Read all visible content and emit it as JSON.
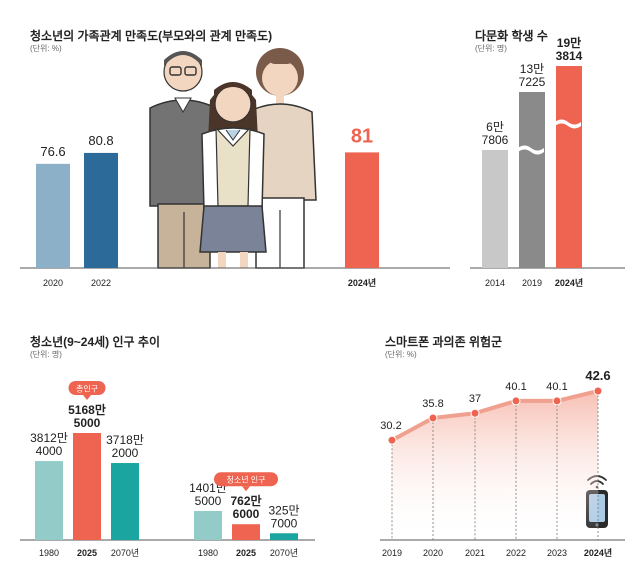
{
  "chart_data": [
    {
      "type": "bar",
      "title": "청소년의 가족관계 만족도(부모와의 관계 만족도)",
      "unit": "(단위: %)",
      "categories": [
        "2020",
        "2022",
        "2024년"
      ],
      "values": [
        76.6,
        80.8,
        81
      ],
      "value_labels": [
        "76.6",
        "80.8",
        "81"
      ],
      "colors": [
        "#8db0c9",
        "#2c6a99",
        "#ee6450"
      ],
      "ylim": [
        0,
        100
      ]
    },
    {
      "type": "bar",
      "title": "다문화 학생 수",
      "unit": "(단위: 명)",
      "categories": [
        "2014",
        "2019",
        "2024년"
      ],
      "values": [
        67806,
        137225,
        193814
      ],
      "value_labels": [
        [
          "6만",
          "7806"
        ],
        [
          "13만",
          "7225"
        ],
        [
          "19만",
          "3814"
        ]
      ],
      "colors": [
        "#c8c8c8",
        "#8a8a8a",
        "#ee6450"
      ],
      "axis_break": true
    },
    {
      "type": "bar",
      "title": "청소년(9~24세) 인구 추이",
      "unit": "(단위: 명)",
      "groups": [
        {
          "name": "총인구",
          "categories": [
            "1980",
            "2025",
            "2070년"
          ],
          "values": [
            38124000,
            51685000,
            37182000
          ],
          "value_labels": [
            [
              "3812만",
              "4000"
            ],
            [
              "5168만",
              "5000"
            ],
            [
              "3718만",
              "2000"
            ]
          ]
        },
        {
          "name": "청소년 인구",
          "categories": [
            "1980",
            "2025",
            "2070년"
          ],
          "values": [
            14015000,
            7626000,
            3257000
          ],
          "value_labels": [
            [
              "1401만",
              "5000"
            ],
            [
              "762만",
              "6000"
            ],
            [
              "325만",
              "7000"
            ]
          ]
        }
      ],
      "colors": [
        "#93cbc8",
        "#ee6450",
        "#1aa5a0"
      ]
    },
    {
      "type": "area",
      "title": "스마트폰 과의존 위험군",
      "unit": "(단위: %)",
      "x": [
        "2019",
        "2020",
        "2021",
        "2022",
        "2023",
        "2024년"
      ],
      "values": [
        30.2,
        35.8,
        37,
        40.1,
        40.1,
        42.6
      ],
      "value_labels": [
        "30.2",
        "35.8",
        "37",
        "40.1",
        "40.1",
        "42.6"
      ],
      "colors": [
        "#f0a08e"
      ]
    }
  ],
  "icons": {
    "family": "family-illustration",
    "smartphone": "smartphone-icon",
    "wifi": "wifi-icon"
  }
}
